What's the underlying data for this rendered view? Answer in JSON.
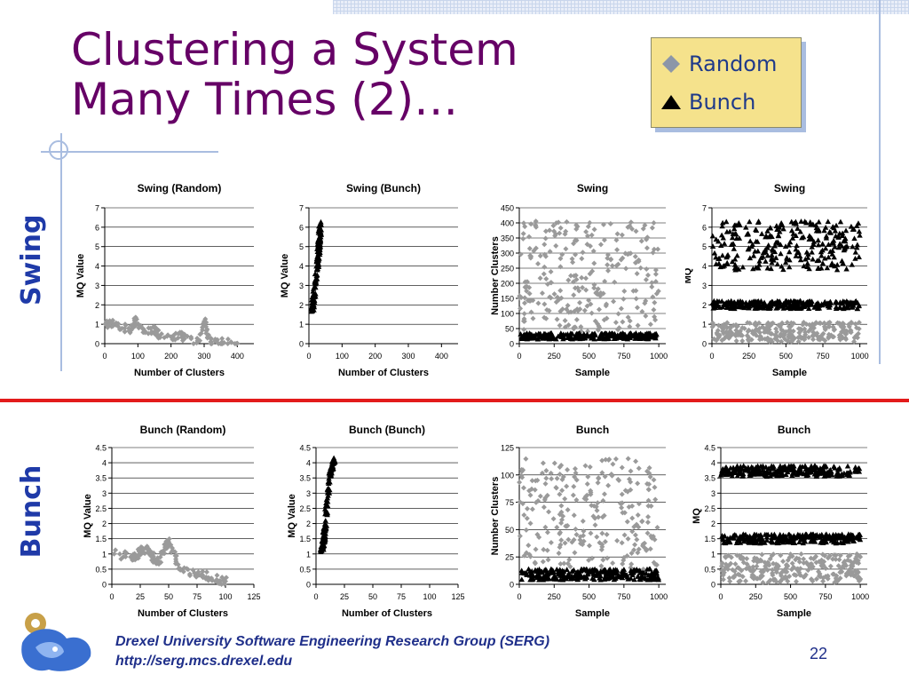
{
  "slide": {
    "title_line1": "Clustering a System",
    "title_line2": "Many Times (2)…",
    "row_label_top": "Swing",
    "row_label_bottom": "Bunch",
    "footer_line1": "Drexel University Software Engineering Research Group (SERG)",
    "footer_line2": "http://serg.mcs.drexel.edu",
    "page_number": "22"
  },
  "legend": {
    "items": [
      {
        "label": "Random",
        "marker": "diamond",
        "color": "#8c96a8"
      },
      {
        "label": "Bunch",
        "marker": "triangle",
        "color": "#000000"
      }
    ]
  },
  "colors": {
    "random_points": "#9a9a9a",
    "bunch_points": "#000000",
    "title": "#660066",
    "row_label": "#1f3aa8",
    "divider": "#e31b1b"
  },
  "chart_data": [
    {
      "type": "scatter",
      "title": "Swing (Random)",
      "xlabel": "Number of Clusters",
      "ylabel": "MQ Value",
      "xlim": [
        0,
        450
      ],
      "ylim": [
        0,
        7
      ],
      "xticks": [
        0,
        100,
        200,
        300,
        400
      ],
      "yticks": [
        0,
        1,
        2,
        3,
        4,
        5,
        6,
        7
      ],
      "grid": true,
      "series": [
        {
          "marker": "diamond",
          "color": "#9a9a9a",
          "points": [
            [
              5,
              1.0
            ],
            [
              40,
              0.9
            ],
            [
              80,
              0.7
            ],
            [
              120,
              0.6
            ],
            [
              160,
              0.45
            ],
            [
              200,
              0.35
            ],
            [
              240,
              0.25
            ],
            [
              280,
              0.15
            ],
            [
              320,
              0.1
            ],
            [
              360,
              0.05
            ],
            [
              400,
              0.02
            ],
            [
              90,
              1.2
            ],
            [
              300,
              1.15
            ],
            [
              15,
              1.1
            ],
            [
              150,
              0.8
            ],
            [
              230,
              0.5
            ]
          ]
        }
      ]
    },
    {
      "type": "scatter",
      "title": "Swing (Bunch)",
      "xlabel": "Number of Clusters",
      "ylabel": "MQ Value",
      "xlim": [
        0,
        450
      ],
      "ylim": [
        0,
        7
      ],
      "xticks": [
        0,
        100,
        200,
        300,
        400
      ],
      "yticks": [
        0,
        1,
        2,
        3,
        4,
        5,
        6,
        7
      ],
      "grid": true,
      "series": [
        {
          "marker": "triangle",
          "color": "#000000",
          "points": [
            [
              10,
              1.7
            ],
            [
              12,
              2.0
            ],
            [
              15,
              2.4
            ],
            [
              25,
              3.8
            ],
            [
              28,
              4.5
            ],
            [
              30,
              5.0
            ],
            [
              32,
              5.5
            ],
            [
              35,
              6.2
            ]
          ]
        }
      ]
    },
    {
      "type": "scatter",
      "title": "Swing",
      "xlabel": "Sample",
      "ylabel": "Number Clusters",
      "xlim": [
        0,
        1050
      ],
      "ylim": [
        0,
        450
      ],
      "xticks": [
        0,
        250,
        500,
        750,
        1000
      ],
      "yticks": [
        0,
        50,
        100,
        150,
        200,
        250,
        300,
        350,
        400,
        450
      ],
      "grid": true,
      "series": [
        {
          "marker": "diamond",
          "color": "#9a9a9a",
          "points": [
            [
              0,
              40
            ],
            [
              1000,
              410
            ]
          ]
        },
        {
          "marker": "triangle",
          "color": "#000000",
          "points": [
            [
              0,
              15
            ],
            [
              1000,
              35
            ]
          ]
        }
      ]
    },
    {
      "type": "scatter",
      "title": "Swing",
      "xlabel": "Sample",
      "ylabel": "MQ",
      "xlim": [
        0,
        1050
      ],
      "ylim": [
        0,
        7
      ],
      "xticks": [
        0,
        250,
        500,
        750,
        1000
      ],
      "yticks": [
        0,
        1,
        2,
        3,
        4,
        5,
        6,
        7
      ],
      "grid": true,
      "series": [
        {
          "marker": "diamond",
          "color": "#9a9a9a",
          "points": [
            [
              0,
              0.1
            ],
            [
              1000,
              1.1
            ]
          ]
        },
        {
          "marker": "triangle",
          "color": "#000000",
          "points": [
            [
              0,
              1.8
            ],
            [
              1000,
              2.2
            ],
            [
              0,
              3.8
            ],
            [
              1000,
              6.3
            ]
          ]
        }
      ]
    },
    {
      "type": "scatter",
      "title": "Bunch (Random)",
      "xlabel": "Number of Clusters",
      "ylabel": "MQ Value",
      "xlim": [
        0,
        125
      ],
      "ylim": [
        0,
        4.5
      ],
      "xticks": [
        0,
        25,
        50,
        75,
        100,
        125
      ],
      "yticks": [
        0,
        0.5,
        1,
        1.5,
        2,
        2.5,
        3,
        3.5,
        4,
        4.5
      ],
      "grid": true,
      "series": [
        {
          "marker": "diamond",
          "color": "#9a9a9a",
          "points": [
            [
              2,
              1.0
            ],
            [
              20,
              0.9
            ],
            [
              40,
              0.7
            ],
            [
              60,
              0.5
            ],
            [
              80,
              0.3
            ],
            [
              100,
              0.1
            ],
            [
              50,
              1.4
            ],
            [
              30,
              1.2
            ]
          ]
        }
      ]
    },
    {
      "type": "scatter",
      "title": "Bunch (Bunch)",
      "xlabel": "Number of Clusters",
      "ylabel": "MQ Value",
      "xlim": [
        0,
        125
      ],
      "ylim": [
        0,
        4.5
      ],
      "xticks": [
        0,
        25,
        50,
        75,
        100,
        125
      ],
      "yticks": [
        0,
        0.5,
        1,
        1.5,
        2,
        2.5,
        3,
        3.5,
        4,
        4.5
      ],
      "grid": true,
      "series": [
        {
          "marker": "triangle",
          "color": "#000000",
          "points": [
            [
              5,
              1.1
            ],
            [
              7,
              1.5
            ],
            [
              8,
              1.9
            ],
            [
              12,
              3.6
            ],
            [
              14,
              3.8
            ],
            [
              16,
              4.1
            ]
          ]
        }
      ]
    },
    {
      "type": "scatter",
      "title": "Bunch",
      "xlabel": "Sample",
      "ylabel": "Number Clusters",
      "xlim": [
        0,
        1050
      ],
      "ylim": [
        0,
        125
      ],
      "xticks": [
        0,
        250,
        500,
        750,
        1000
      ],
      "yticks": [
        0,
        25,
        50,
        75,
        100,
        125
      ],
      "grid": true,
      "series": [
        {
          "marker": "diamond",
          "color": "#9a9a9a",
          "points": [
            [
              0,
              10
            ],
            [
              1000,
              115
            ]
          ]
        },
        {
          "marker": "triangle",
          "color": "#000000",
          "points": [
            [
              0,
              4
            ],
            [
              1000,
              14
            ]
          ]
        }
      ]
    },
    {
      "type": "scatter",
      "title": "Bunch",
      "xlabel": "Sample",
      "ylabel": "MQ",
      "xlim": [
        0,
        1050
      ],
      "ylim": [
        0,
        4.5
      ],
      "xticks": [
        0,
        250,
        500,
        750,
        1000
      ],
      "yticks": [
        0,
        0.5,
        1,
        1.5,
        2,
        2.5,
        3,
        3.5,
        4,
        4.5
      ],
      "grid": true,
      "series": [
        {
          "marker": "diamond",
          "color": "#9a9a9a",
          "points": [
            [
              0,
              0.05
            ],
            [
              1000,
              1.0
            ]
          ]
        },
        {
          "marker": "triangle",
          "color": "#000000",
          "points": [
            [
              0,
              1.35
            ],
            [
              1000,
              1.65
            ],
            [
              0,
              3.55
            ],
            [
              1000,
              3.9
            ]
          ]
        }
      ]
    }
  ]
}
